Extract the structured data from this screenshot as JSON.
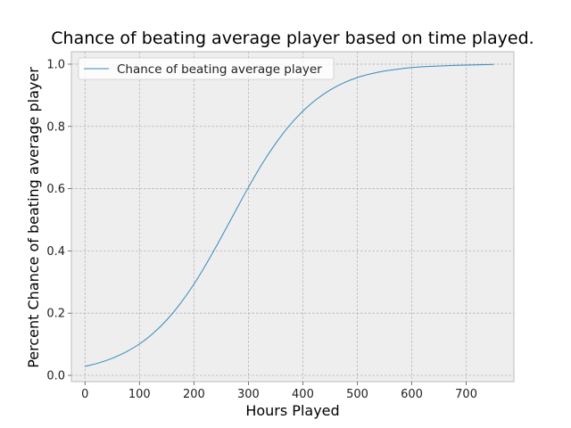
{
  "chart_data": {
    "type": "line",
    "title": "Chance of beating average player based on time played.",
    "xlabel": "Hours Played",
    "ylabel": "Percent Chance of beating average player",
    "xlim": [
      -25,
      787.5
    ],
    "ylim": [
      -0.02,
      1.04
    ],
    "xticks": [
      0,
      100,
      200,
      300,
      400,
      500,
      600,
      700
    ],
    "yticks": [
      0.0,
      0.2,
      0.4,
      0.6,
      0.8,
      1.0
    ],
    "ytick_format_decimals": 1,
    "grid": true,
    "legend_position": "top-left",
    "series": [
      {
        "name": "Chance of beating average player",
        "color": "#348abd",
        "x": [
          0,
          25,
          50,
          75,
          100,
          125,
          150,
          175,
          200,
          225,
          250,
          275,
          300,
          325,
          350,
          375,
          400,
          425,
          450,
          475,
          500,
          525,
          550,
          575,
          600,
          625,
          650,
          675,
          700,
          725,
          750
        ],
        "y": [
          0.029,
          0.04,
          0.055,
          0.075,
          0.101,
          0.135,
          0.178,
          0.231,
          0.293,
          0.365,
          0.443,
          0.524,
          0.604,
          0.679,
          0.745,
          0.802,
          0.849,
          0.887,
          0.917,
          0.94,
          0.957,
          0.969,
          0.978,
          0.984,
          0.989,
          0.992,
          0.994,
          0.996,
          0.997,
          0.998,
          0.999
        ]
      }
    ],
    "colors": {
      "plot_background": "#eeeeee",
      "grid": "#b2b2b2",
      "frame": "#bcbcbc",
      "legend_background": "#ffffff",
      "legend_border": "#cccccc"
    }
  }
}
